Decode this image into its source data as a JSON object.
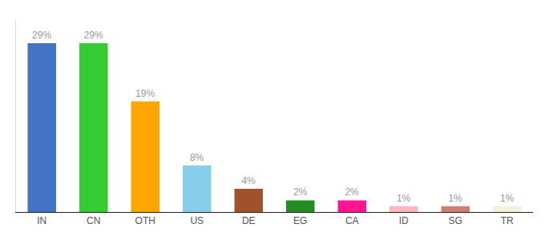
{
  "chart_data": {
    "type": "bar",
    "categories": [
      "IN",
      "CN",
      "OTH",
      "US",
      "DE",
      "EG",
      "CA",
      "ID",
      "SG",
      "TR"
    ],
    "values": [
      29,
      29,
      19,
      8,
      4,
      2,
      2,
      1,
      1,
      1
    ],
    "value_labels": [
      "29%",
      "29%",
      "19%",
      "8%",
      "4%",
      "2%",
      "2%",
      "1%",
      "1%",
      "1%"
    ],
    "colors": [
      "#4472C4",
      "#33CC33",
      "#FFA500",
      "#87CEEB",
      "#A0522D",
      "#228B22",
      "#FF1493",
      "#FFB6C1",
      "#CD8070",
      "#F5F0DC"
    ],
    "ylim": [
      0,
      33
    ],
    "grid": false,
    "data_labels": true,
    "tick_labels": "x"
  }
}
